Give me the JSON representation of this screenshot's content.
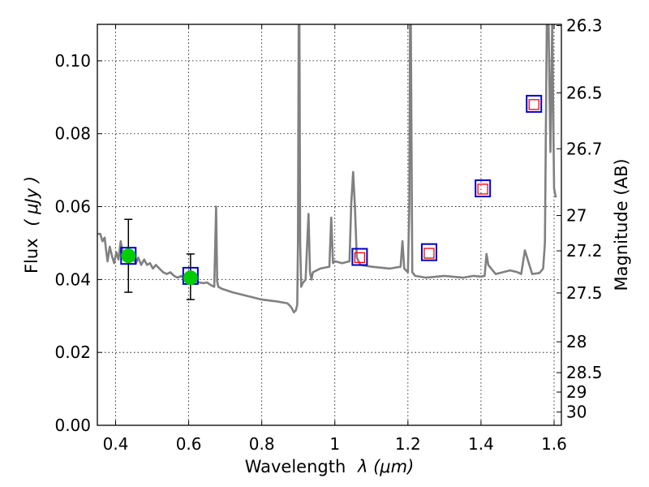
{
  "chart_data": {
    "type": "line",
    "xlabel": "Wavelength",
    "xlabel_symbol": "λ (μm)",
    "ylabel": "Flux",
    "ylabel_symbol": "( μJy )",
    "y2label": "Magnitude (AB)",
    "xlim": [
      0.35,
      1.62
    ],
    "ylim": [
      0.0,
      0.11
    ],
    "grid": true,
    "x_ticks": [
      {
        "value": 0.4,
        "label": "0.4"
      },
      {
        "value": 0.6,
        "label": "0.6"
      },
      {
        "value": 0.8,
        "label": "0.8"
      },
      {
        "value": 1.0,
        "label": "1"
      },
      {
        "value": 1.2,
        "label": "1.2"
      },
      {
        "value": 1.4,
        "label": "1.4"
      },
      {
        "value": 1.6,
        "label": "1.6"
      }
    ],
    "y_ticks": [
      {
        "value": 0.0,
        "label": "0.00"
      },
      {
        "value": 0.02,
        "label": "0.02"
      },
      {
        "value": 0.04,
        "label": "0.04"
      },
      {
        "value": 0.06,
        "label": "0.06"
      },
      {
        "value": 0.08,
        "label": "0.08"
      },
      {
        "value": 0.1,
        "label": "0.10"
      }
    ],
    "y2_ticks": [
      {
        "value": 26.3,
        "label": "26.3"
      },
      {
        "value": 26.5,
        "label": "26.5"
      },
      {
        "value": 26.7,
        "label": "26.7"
      },
      {
        "value": 27,
        "label": "27"
      },
      {
        "value": 27.2,
        "label": "27.2"
      },
      {
        "value": 27.5,
        "label": "27.5"
      },
      {
        "value": 28,
        "label": "28"
      },
      {
        "value": 28.5,
        "label": "28.5"
      },
      {
        "value": 29,
        "label": "29"
      },
      {
        "value": 30,
        "label": "30"
      }
    ],
    "model_spectrum": {
      "color": "#808080",
      "x": [
        0.35,
        0.358,
        0.364,
        0.37,
        0.374,
        0.378,
        0.384,
        0.39,
        0.396,
        0.402,
        0.408,
        0.414,
        0.42,
        0.426,
        0.432,
        0.44,
        0.448,
        0.456,
        0.462,
        0.47,
        0.478,
        0.486,
        0.494,
        0.502,
        0.51,
        0.52,
        0.53,
        0.54,
        0.55,
        0.56,
        0.57,
        0.58,
        0.59,
        0.6,
        0.61,
        0.62,
        0.63,
        0.64,
        0.65,
        0.66,
        0.67,
        0.675,
        0.678,
        0.681,
        0.69,
        0.72,
        0.76,
        0.8,
        0.84,
        0.87,
        0.88,
        0.888,
        0.893,
        0.897,
        0.899,
        0.901,
        0.903,
        0.905,
        0.908,
        0.912,
        0.92,
        0.928,
        0.932,
        0.936,
        0.94,
        0.96,
        0.985,
        0.99,
        0.995,
        1.0,
        1.02,
        1.04,
        1.045,
        1.05,
        1.055,
        1.06,
        1.07,
        1.1,
        1.15,
        1.18,
        1.185,
        1.19,
        1.2,
        1.204,
        1.206,
        1.208,
        1.212,
        1.22,
        1.25,
        1.3,
        1.35,
        1.38,
        1.4,
        1.41,
        1.415,
        1.42,
        1.44,
        1.48,
        1.5,
        1.51,
        1.52,
        1.54,
        1.56,
        1.57,
        1.575,
        1.58,
        1.585,
        1.59,
        1.595,
        1.6,
        1.605
      ],
      "y": [
        0.0525,
        0.0525,
        0.0505,
        0.0515,
        0.048,
        0.045,
        0.049,
        0.0465,
        0.0445,
        0.0475,
        0.0455,
        0.0505,
        0.047,
        0.0455,
        0.047,
        0.046,
        0.0455,
        0.0445,
        0.046,
        0.044,
        0.0455,
        0.044,
        0.0445,
        0.043,
        0.044,
        0.043,
        0.042,
        0.0415,
        0.042,
        0.041,
        0.0405,
        0.041,
        0.04,
        0.04,
        0.0398,
        0.0394,
        0.0392,
        0.039,
        0.0392,
        0.0385,
        0.038,
        0.06,
        0.0395,
        0.038,
        0.0375,
        0.0365,
        0.0355,
        0.0345,
        0.034,
        0.0335,
        0.0325,
        0.031,
        0.0315,
        0.033,
        0.05,
        0.11,
        0.11,
        0.05,
        0.038,
        0.039,
        0.04,
        0.058,
        0.042,
        0.04,
        0.042,
        0.043,
        0.0435,
        0.057,
        0.0445,
        0.045,
        0.0445,
        0.045,
        0.061,
        0.0695,
        0.06,
        0.046,
        0.044,
        0.0435,
        0.043,
        0.0435,
        0.0505,
        0.043,
        0.042,
        0.06,
        0.11,
        0.11,
        0.042,
        0.041,
        0.0405,
        0.041,
        0.0405,
        0.041,
        0.0408,
        0.041,
        0.047,
        0.044,
        0.0415,
        0.0425,
        0.042,
        0.0415,
        0.048,
        0.0415,
        0.0418,
        0.043,
        0.05,
        0.11,
        0.11,
        0.075,
        0.11,
        0.065,
        0.0625
      ]
    },
    "observed_points": {
      "color": "#00cc00",
      "x": [
        0.435,
        0.605
      ],
      "y": [
        0.0465,
        0.0405
      ],
      "err_low": [
        0.0365,
        0.0345
      ],
      "err_high": [
        0.0565,
        0.047
      ]
    },
    "model_photometry": {
      "color": "#0000cc",
      "x": [
        0.435,
        0.605,
        1.068,
        1.258,
        1.405,
        1.545
      ],
      "y": [
        0.0465,
        0.041,
        0.0462,
        0.0475,
        0.065,
        0.0882
      ]
    },
    "upper_limits": {
      "color": "#ff0000",
      "x": [
        1.068,
        1.258,
        1.405,
        1.545
      ],
      "y": [
        0.046,
        0.0472,
        0.0648,
        0.088
      ]
    }
  }
}
